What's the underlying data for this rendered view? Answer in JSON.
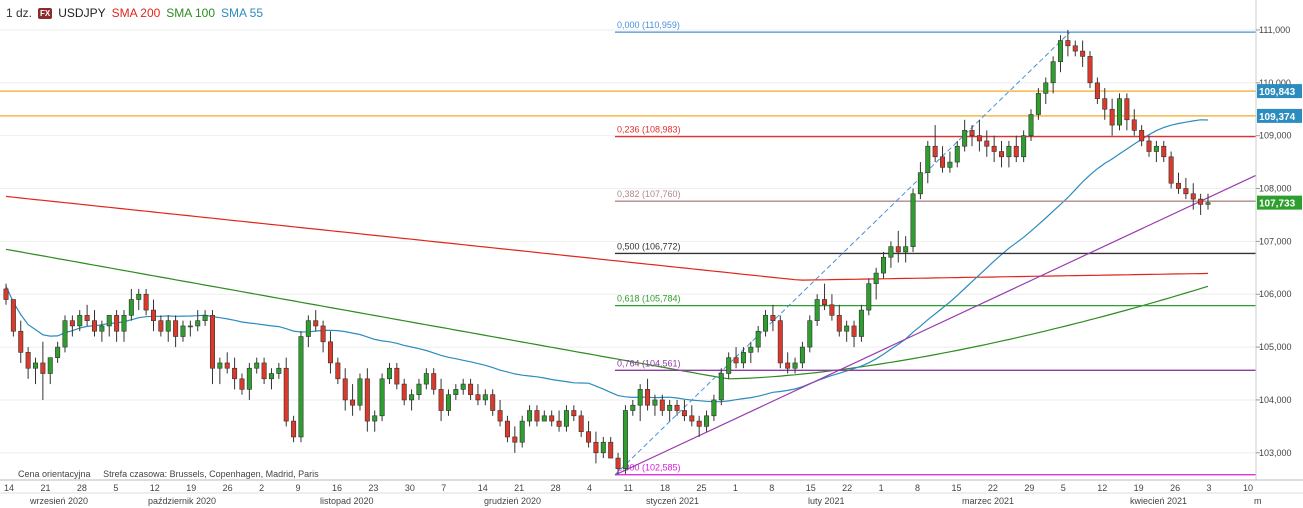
{
  "header": {
    "timeframe": "1 dz.",
    "fx_badge": "FX",
    "symbol": "USDJPY",
    "sma200_label": "SMA 200",
    "sma100_label": "SMA 100",
    "sma55_label": "SMA 55",
    "colors": {
      "sma200": "#e0261c",
      "sma100": "#2e8b20",
      "sma55": "#2b8cbf"
    }
  },
  "footnote": {
    "price_note": "Cena orientacyjna",
    "timezone_note": "Strefa czasowa: Brussels, Copenhagen, Madrid, Paris"
  },
  "chart_data": {
    "type": "candlestick",
    "ylim": [
      102.5,
      111.3
    ],
    "y_ticks": [
      "111,000",
      "110,000",
      "109,000",
      "108,000",
      "107,000",
      "106,000",
      "105,000",
      "104,000",
      "103,000"
    ],
    "y_tick_values": [
      111,
      110,
      109,
      108,
      107,
      106,
      105,
      104,
      103
    ],
    "x_day_labels": [
      "14",
      "21",
      "28",
      "5",
      "12",
      "19",
      "26",
      "2",
      "9",
      "16",
      "23",
      "30",
      "7",
      "14",
      "21",
      "28",
      "4",
      "11",
      "18",
      "25",
      "1",
      "8",
      "15",
      "22",
      "1",
      "8",
      "15",
      "22",
      "29",
      "5",
      "12",
      "19",
      "26",
      "3",
      "10"
    ],
    "x_month_labels": [
      "wrzesień 2020",
      "październik 2020",
      "listopad 2020",
      "grudzień 2020",
      "styczeń 2021",
      "luty 2021",
      "marzec 2021",
      "kwiecień 2021",
      "m"
    ],
    "price_badges": [
      {
        "label": "109,843",
        "value": 109.843,
        "color": "#2b8cbf"
      },
      {
        "label": "109,374",
        "value": 109.374,
        "color": "#2b8cbf"
      },
      {
        "label": "107,733",
        "value": 107.733,
        "color": "#2e9e2e"
      }
    ],
    "fib_levels": [
      {
        "label": "0,000 (110,959)",
        "value": 110.959,
        "color": "#4a90d9"
      },
      {
        "label": "0,236 (108,983)",
        "value": 108.983,
        "color": "#e03030"
      },
      {
        "label": "0,382 (107,760)",
        "value": 107.76,
        "color": "#b08a8a"
      },
      {
        "label": "0,500 (106,772)",
        "value": 106.772,
        "color": "#333333"
      },
      {
        "label": "0,618 (105,784)",
        "value": 105.784,
        "color": "#2e9e2e"
      },
      {
        "label": "0,764 (104,561)",
        "value": 104.561,
        "color": "#8e3aa5"
      },
      {
        "label": "1,000 (102,585)",
        "value": 102.585,
        "color": "#d81bd8"
      }
    ],
    "horizontal_resistance": [
      109.843,
      109.374
    ],
    "trendline": {
      "from": [
        102.58,
        "2021-01-06"
      ],
      "to": [
        108.25,
        "2021-05-12"
      ],
      "color": "#9a3ab0"
    },
    "fib_swing": {
      "low": 102.585,
      "high": 110.959,
      "color": "#4a90d9"
    },
    "candles": [
      [
        106.1,
        106.2,
        105.8,
        105.9
      ],
      [
        105.9,
        105.9,
        105.2,
        105.3
      ],
      [
        105.3,
        105.5,
        104.7,
        104.9
      ],
      [
        104.9,
        105.0,
        104.4,
        104.6
      ],
      [
        104.6,
        104.8,
        104.3,
        104.7
      ],
      [
        104.7,
        105.1,
        104.0,
        104.5
      ],
      [
        104.5,
        104.8,
        104.3,
        104.8
      ],
      [
        104.8,
        105.1,
        104.7,
        105.0
      ],
      [
        105.0,
        105.6,
        104.9,
        105.5
      ],
      [
        105.5,
        105.6,
        105.2,
        105.4
      ],
      [
        105.4,
        105.7,
        105.3,
        105.6
      ],
      [
        105.6,
        105.8,
        105.4,
        105.5
      ],
      [
        105.5,
        105.7,
        105.2,
        105.3
      ],
      [
        105.3,
        105.5,
        105.1,
        105.4
      ],
      [
        105.4,
        105.6,
        105.2,
        105.6
      ],
      [
        105.6,
        105.7,
        105.1,
        105.3
      ],
      [
        105.3,
        105.7,
        105.1,
        105.6
      ],
      [
        105.6,
        106.1,
        105.5,
        105.9
      ],
      [
        105.9,
        106.1,
        105.7,
        106.0
      ],
      [
        106.0,
        106.1,
        105.6,
        105.7
      ],
      [
        105.7,
        105.9,
        105.3,
        105.5
      ],
      [
        105.5,
        105.6,
        105.2,
        105.3
      ],
      [
        105.3,
        105.6,
        105.1,
        105.5
      ],
      [
        105.5,
        105.6,
        105.0,
        105.2
      ],
      [
        105.2,
        105.5,
        105.1,
        105.4
      ],
      [
        105.4,
        105.5,
        105.2,
        105.4
      ],
      [
        105.4,
        105.7,
        105.3,
        105.5
      ],
      [
        105.5,
        105.7,
        105.4,
        105.6
      ],
      [
        105.6,
        105.7,
        104.3,
        104.6
      ],
      [
        104.6,
        104.8,
        104.3,
        104.7
      ],
      [
        104.7,
        104.9,
        104.5,
        104.6
      ],
      [
        104.6,
        104.8,
        104.2,
        104.4
      ],
      [
        104.4,
        104.5,
        104.1,
        104.2
      ],
      [
        104.2,
        104.7,
        104.0,
        104.6
      ],
      [
        104.6,
        104.8,
        104.5,
        104.7
      ],
      [
        104.7,
        104.8,
        104.3,
        104.4
      ],
      [
        104.4,
        104.6,
        104.2,
        104.5
      ],
      [
        104.5,
        104.7,
        104.4,
        104.6
      ],
      [
        104.6,
        104.8,
        103.5,
        103.6
      ],
      [
        103.6,
        103.7,
        103.2,
        103.3
      ],
      [
        103.3,
        105.3,
        103.2,
        105.2
      ],
      [
        105.2,
        105.6,
        105.0,
        105.5
      ],
      [
        105.5,
        105.7,
        105.3,
        105.4
      ],
      [
        105.4,
        105.5,
        104.9,
        105.1
      ],
      [
        105.1,
        105.3,
        104.5,
        104.7
      ],
      [
        104.7,
        104.8,
        104.3,
        104.4
      ],
      [
        104.4,
        104.6,
        103.8,
        104.0
      ],
      [
        104.0,
        104.3,
        103.7,
        103.9
      ],
      [
        103.9,
        104.5,
        103.8,
        104.4
      ],
      [
        104.4,
        104.6,
        103.4,
        103.6
      ],
      [
        103.6,
        103.8,
        103.4,
        103.7
      ],
      [
        103.7,
        104.5,
        103.6,
        104.4
      ],
      [
        104.4,
        104.7,
        104.3,
        104.6
      ],
      [
        104.6,
        104.7,
        104.2,
        104.3
      ],
      [
        104.3,
        104.4,
        103.9,
        104.0
      ],
      [
        104.0,
        104.2,
        103.8,
        104.1
      ],
      [
        104.1,
        104.4,
        104.0,
        104.3
      ],
      [
        104.3,
        104.6,
        104.2,
        104.5
      ],
      [
        104.5,
        104.6,
        104.1,
        104.2
      ],
      [
        104.2,
        104.4,
        103.6,
        103.8
      ],
      [
        103.8,
        104.2,
        103.7,
        104.1
      ],
      [
        104.1,
        104.3,
        104.0,
        104.2
      ],
      [
        104.2,
        104.4,
        104.1,
        104.3
      ],
      [
        104.3,
        104.4,
        104.0,
        104.1
      ],
      [
        104.1,
        104.3,
        103.9,
        104.0
      ],
      [
        104.0,
        104.2,
        103.9,
        104.1
      ],
      [
        104.1,
        104.2,
        103.7,
        103.8
      ],
      [
        103.8,
        104.0,
        103.5,
        103.6
      ],
      [
        103.6,
        103.7,
        103.2,
        103.3
      ],
      [
        103.3,
        103.5,
        103.0,
        103.2
      ],
      [
        103.2,
        103.7,
        103.1,
        103.6
      ],
      [
        103.6,
        103.9,
        103.5,
        103.8
      ],
      [
        103.8,
        103.9,
        103.5,
        103.6
      ],
      [
        103.6,
        103.8,
        103.6,
        103.7
      ],
      [
        103.7,
        103.8,
        103.5,
        103.6
      ],
      [
        103.6,
        103.8,
        103.4,
        103.5
      ],
      [
        103.5,
        103.9,
        103.4,
        103.8
      ],
      [
        103.8,
        103.9,
        103.6,
        103.7
      ],
      [
        103.7,
        103.8,
        103.3,
        103.4
      ],
      [
        103.4,
        103.6,
        103.1,
        103.2
      ],
      [
        103.2,
        103.4,
        102.8,
        103.0
      ],
      [
        103.0,
        103.3,
        102.9,
        103.2
      ],
      [
        103.2,
        103.3,
        102.9,
        102.9
      ],
      [
        102.9,
        103.0,
        102.6,
        102.7
      ],
      [
        102.7,
        103.9,
        102.6,
        103.8
      ],
      [
        103.8,
        104.0,
        103.7,
        103.9
      ],
      [
        103.9,
        104.3,
        103.6,
        104.2
      ],
      [
        104.2,
        104.4,
        103.8,
        103.9
      ],
      [
        103.9,
        104.1,
        103.7,
        104.0
      ],
      [
        104.0,
        104.1,
        103.7,
        103.8
      ],
      [
        103.8,
        104.0,
        103.6,
        103.9
      ],
      [
        103.9,
        104.0,
        103.7,
        103.8
      ],
      [
        103.8,
        104.0,
        103.6,
        103.7
      ],
      [
        103.7,
        103.9,
        103.5,
        103.6
      ],
      [
        103.6,
        103.7,
        103.3,
        103.5
      ],
      [
        103.5,
        103.8,
        103.4,
        103.7
      ],
      [
        103.7,
        104.1,
        103.6,
        104.0
      ],
      [
        104.0,
        104.6,
        103.9,
        104.5
      ],
      [
        104.5,
        104.9,
        104.4,
        104.8
      ],
      [
        104.8,
        105.0,
        104.6,
        104.7
      ],
      [
        104.7,
        105.0,
        104.6,
        104.9
      ],
      [
        104.9,
        105.1,
        104.7,
        105.0
      ],
      [
        105.0,
        105.4,
        104.9,
        105.3
      ],
      [
        105.3,
        105.7,
        105.2,
        105.6
      ],
      [
        105.6,
        105.8,
        105.3,
        105.5
      ],
      [
        105.5,
        105.6,
        104.6,
        104.7
      ],
      [
        104.7,
        104.9,
        104.5,
        104.6
      ],
      [
        104.6,
        104.8,
        104.5,
        104.7
      ],
      [
        104.7,
        105.1,
        104.6,
        105.0
      ],
      [
        105.0,
        105.6,
        104.9,
        105.5
      ],
      [
        105.5,
        106.0,
        105.4,
        105.9
      ],
      [
        105.9,
        106.2,
        105.7,
        105.8
      ],
      [
        105.8,
        106.0,
        105.5,
        105.6
      ],
      [
        105.6,
        105.8,
        105.2,
        105.3
      ],
      [
        105.3,
        105.5,
        105.1,
        105.4
      ],
      [
        105.4,
        105.5,
        105.0,
        105.2
      ],
      [
        105.2,
        105.8,
        105.1,
        105.7
      ],
      [
        105.7,
        106.3,
        105.6,
        106.2
      ],
      [
        106.2,
        106.5,
        105.9,
        106.4
      ],
      [
        106.4,
        106.8,
        106.3,
        106.7
      ],
      [
        106.7,
        107.0,
        106.5,
        106.9
      ],
      [
        106.9,
        107.2,
        106.6,
        106.8
      ],
      [
        106.8,
        107.1,
        106.6,
        106.9
      ],
      [
        106.9,
        108.0,
        106.8,
        107.9
      ],
      [
        107.9,
        108.5,
        107.8,
        108.3
      ],
      [
        108.3,
        108.9,
        108.1,
        108.8
      ],
      [
        108.8,
        109.2,
        108.5,
        108.6
      ],
      [
        108.6,
        108.8,
        108.3,
        108.4
      ],
      [
        108.4,
        108.7,
        108.3,
        108.5
      ],
      [
        108.5,
        108.9,
        108.4,
        108.8
      ],
      [
        108.8,
        109.3,
        108.7,
        109.1
      ],
      [
        109.1,
        109.2,
        108.8,
        109.0
      ],
      [
        109.0,
        109.3,
        108.7,
        108.9
      ],
      [
        108.9,
        109.1,
        108.6,
        108.8
      ],
      [
        108.8,
        109.0,
        108.5,
        108.7
      ],
      [
        108.7,
        108.9,
        108.4,
        108.6
      ],
      [
        108.6,
        108.9,
        108.4,
        108.8
      ],
      [
        108.8,
        109.0,
        108.5,
        108.6
      ],
      [
        108.6,
        109.1,
        108.5,
        109.0
      ],
      [
        109.0,
        109.5,
        108.9,
        109.4
      ],
      [
        109.4,
        109.9,
        109.3,
        109.8
      ],
      [
        109.8,
        110.1,
        109.6,
        110.0
      ],
      [
        110.0,
        110.5,
        109.8,
        110.4
      ],
      [
        110.4,
        110.9,
        110.2,
        110.8
      ],
      [
        110.8,
        111.0,
        110.5,
        110.7
      ],
      [
        110.7,
        110.8,
        110.5,
        110.6
      ],
      [
        110.6,
        110.8,
        110.3,
        110.5
      ],
      [
        110.5,
        110.6,
        109.9,
        110.0
      ],
      [
        110.0,
        110.1,
        109.6,
        109.7
      ],
      [
        109.7,
        109.9,
        109.3,
        109.5
      ],
      [
        109.5,
        109.7,
        109.0,
        109.2
      ],
      [
        109.2,
        109.8,
        109.1,
        109.7
      ],
      [
        109.7,
        109.8,
        109.1,
        109.3
      ],
      [
        109.3,
        109.5,
        109.0,
        109.1
      ],
      [
        109.1,
        109.2,
        108.8,
        108.9
      ],
      [
        108.9,
        109.0,
        108.6,
        108.7
      ],
      [
        108.7,
        108.9,
        108.5,
        108.8
      ],
      [
        108.8,
        108.9,
        108.5,
        108.6
      ],
      [
        108.6,
        108.7,
        108.0,
        108.1
      ],
      [
        108.1,
        108.3,
        107.9,
        108.0
      ],
      [
        108.0,
        108.2,
        107.8,
        107.9
      ],
      [
        107.9,
        108.1,
        107.6,
        107.8
      ],
      [
        107.8,
        107.9,
        107.5,
        107.7
      ],
      [
        107.7,
        107.9,
        107.6,
        107.733
      ]
    ]
  }
}
